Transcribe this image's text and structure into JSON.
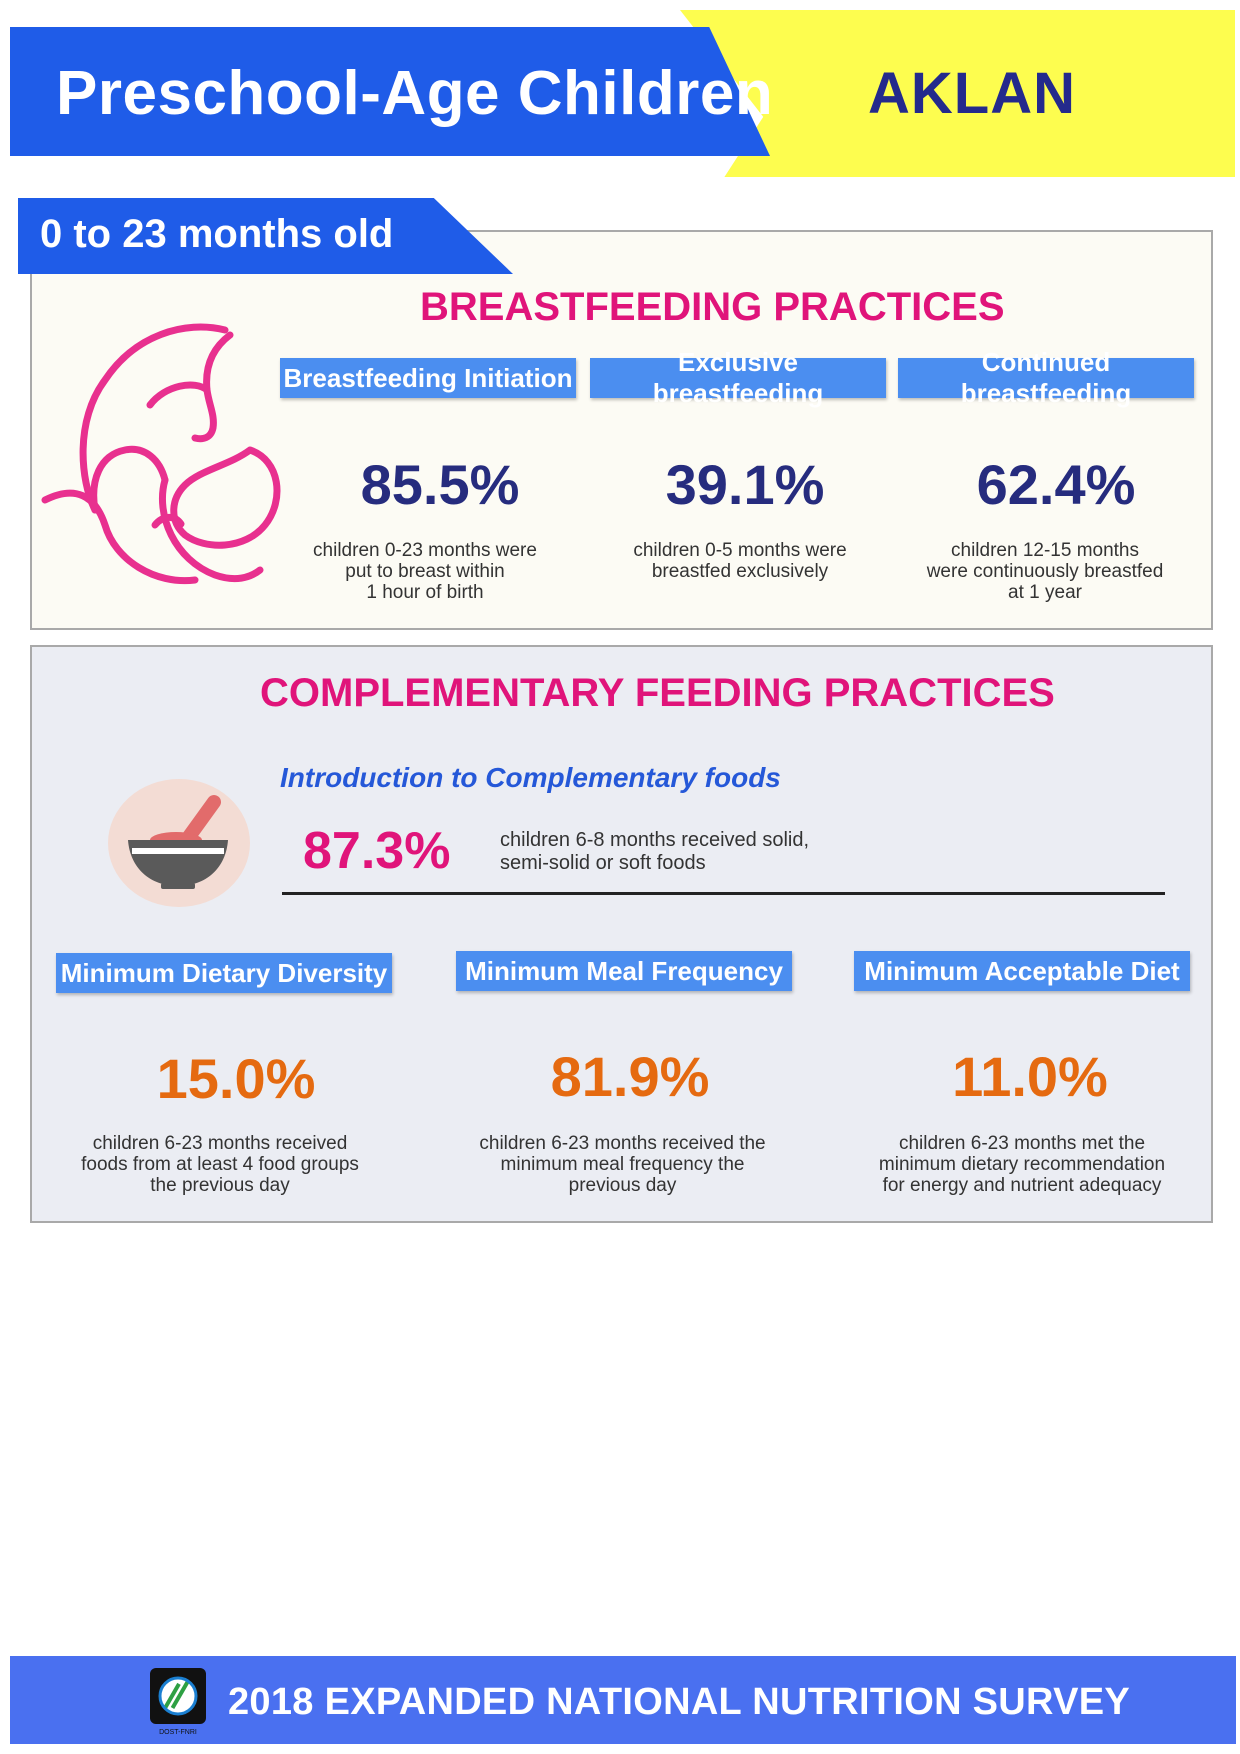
{
  "header": {
    "title": "Preschool-Age Children",
    "region": "AKLAN"
  },
  "age_group": "0 to 23 months old",
  "breastfeeding": {
    "title": "BREASTFEEDING PRACTICES",
    "items": [
      {
        "label": "Breastfeeding Initiation",
        "value": "85.5%",
        "desc": "children 0-23 months were\nput to breast within\n1 hour of birth"
      },
      {
        "label": "Exclusive breastfeeding",
        "value": "39.1%",
        "desc": "children 0-5 months were\nbreastfed exclusively"
      },
      {
        "label": "Continued breastfeeding",
        "value": "62.4%",
        "desc": "children 12-15 months\nwere continuously breastfed\nat 1 year"
      }
    ]
  },
  "complementary": {
    "title": "COMPLEMENTARY FEEDING PRACTICES",
    "intro": {
      "label": "Introduction to Complementary foods",
      "value": "87.3%",
      "desc": "children 6-8 months received solid,\nsemi-solid or soft foods"
    },
    "items": [
      {
        "label": "Minimum Dietary Diversity",
        "value": "15.0%",
        "desc": "children 6-23 months received\nfoods from at least 4 food groups\nthe previous day"
      },
      {
        "label": "Minimum Meal Frequency",
        "value": "81.9%",
        "desc": "children 6-23 months received the\nminimum meal frequency the\nprevious day"
      },
      {
        "label": "Minimum Acceptable Diet",
        "value": "11.0%",
        "desc": "children 6-23 months met the\nminimum dietary recommendation\nfor energy and nutrient adequacy"
      }
    ]
  },
  "footer": {
    "title": "2018 EXPANDED NATIONAL NUTRITION SURVEY",
    "logo_caption": "DOST-FNRI"
  },
  "colors": {
    "blue": "#1f5ce8",
    "yellow": "#fdfd4f",
    "magenta": "#e0147a",
    "navy": "#262c7e",
    "orange": "#e56a10"
  }
}
